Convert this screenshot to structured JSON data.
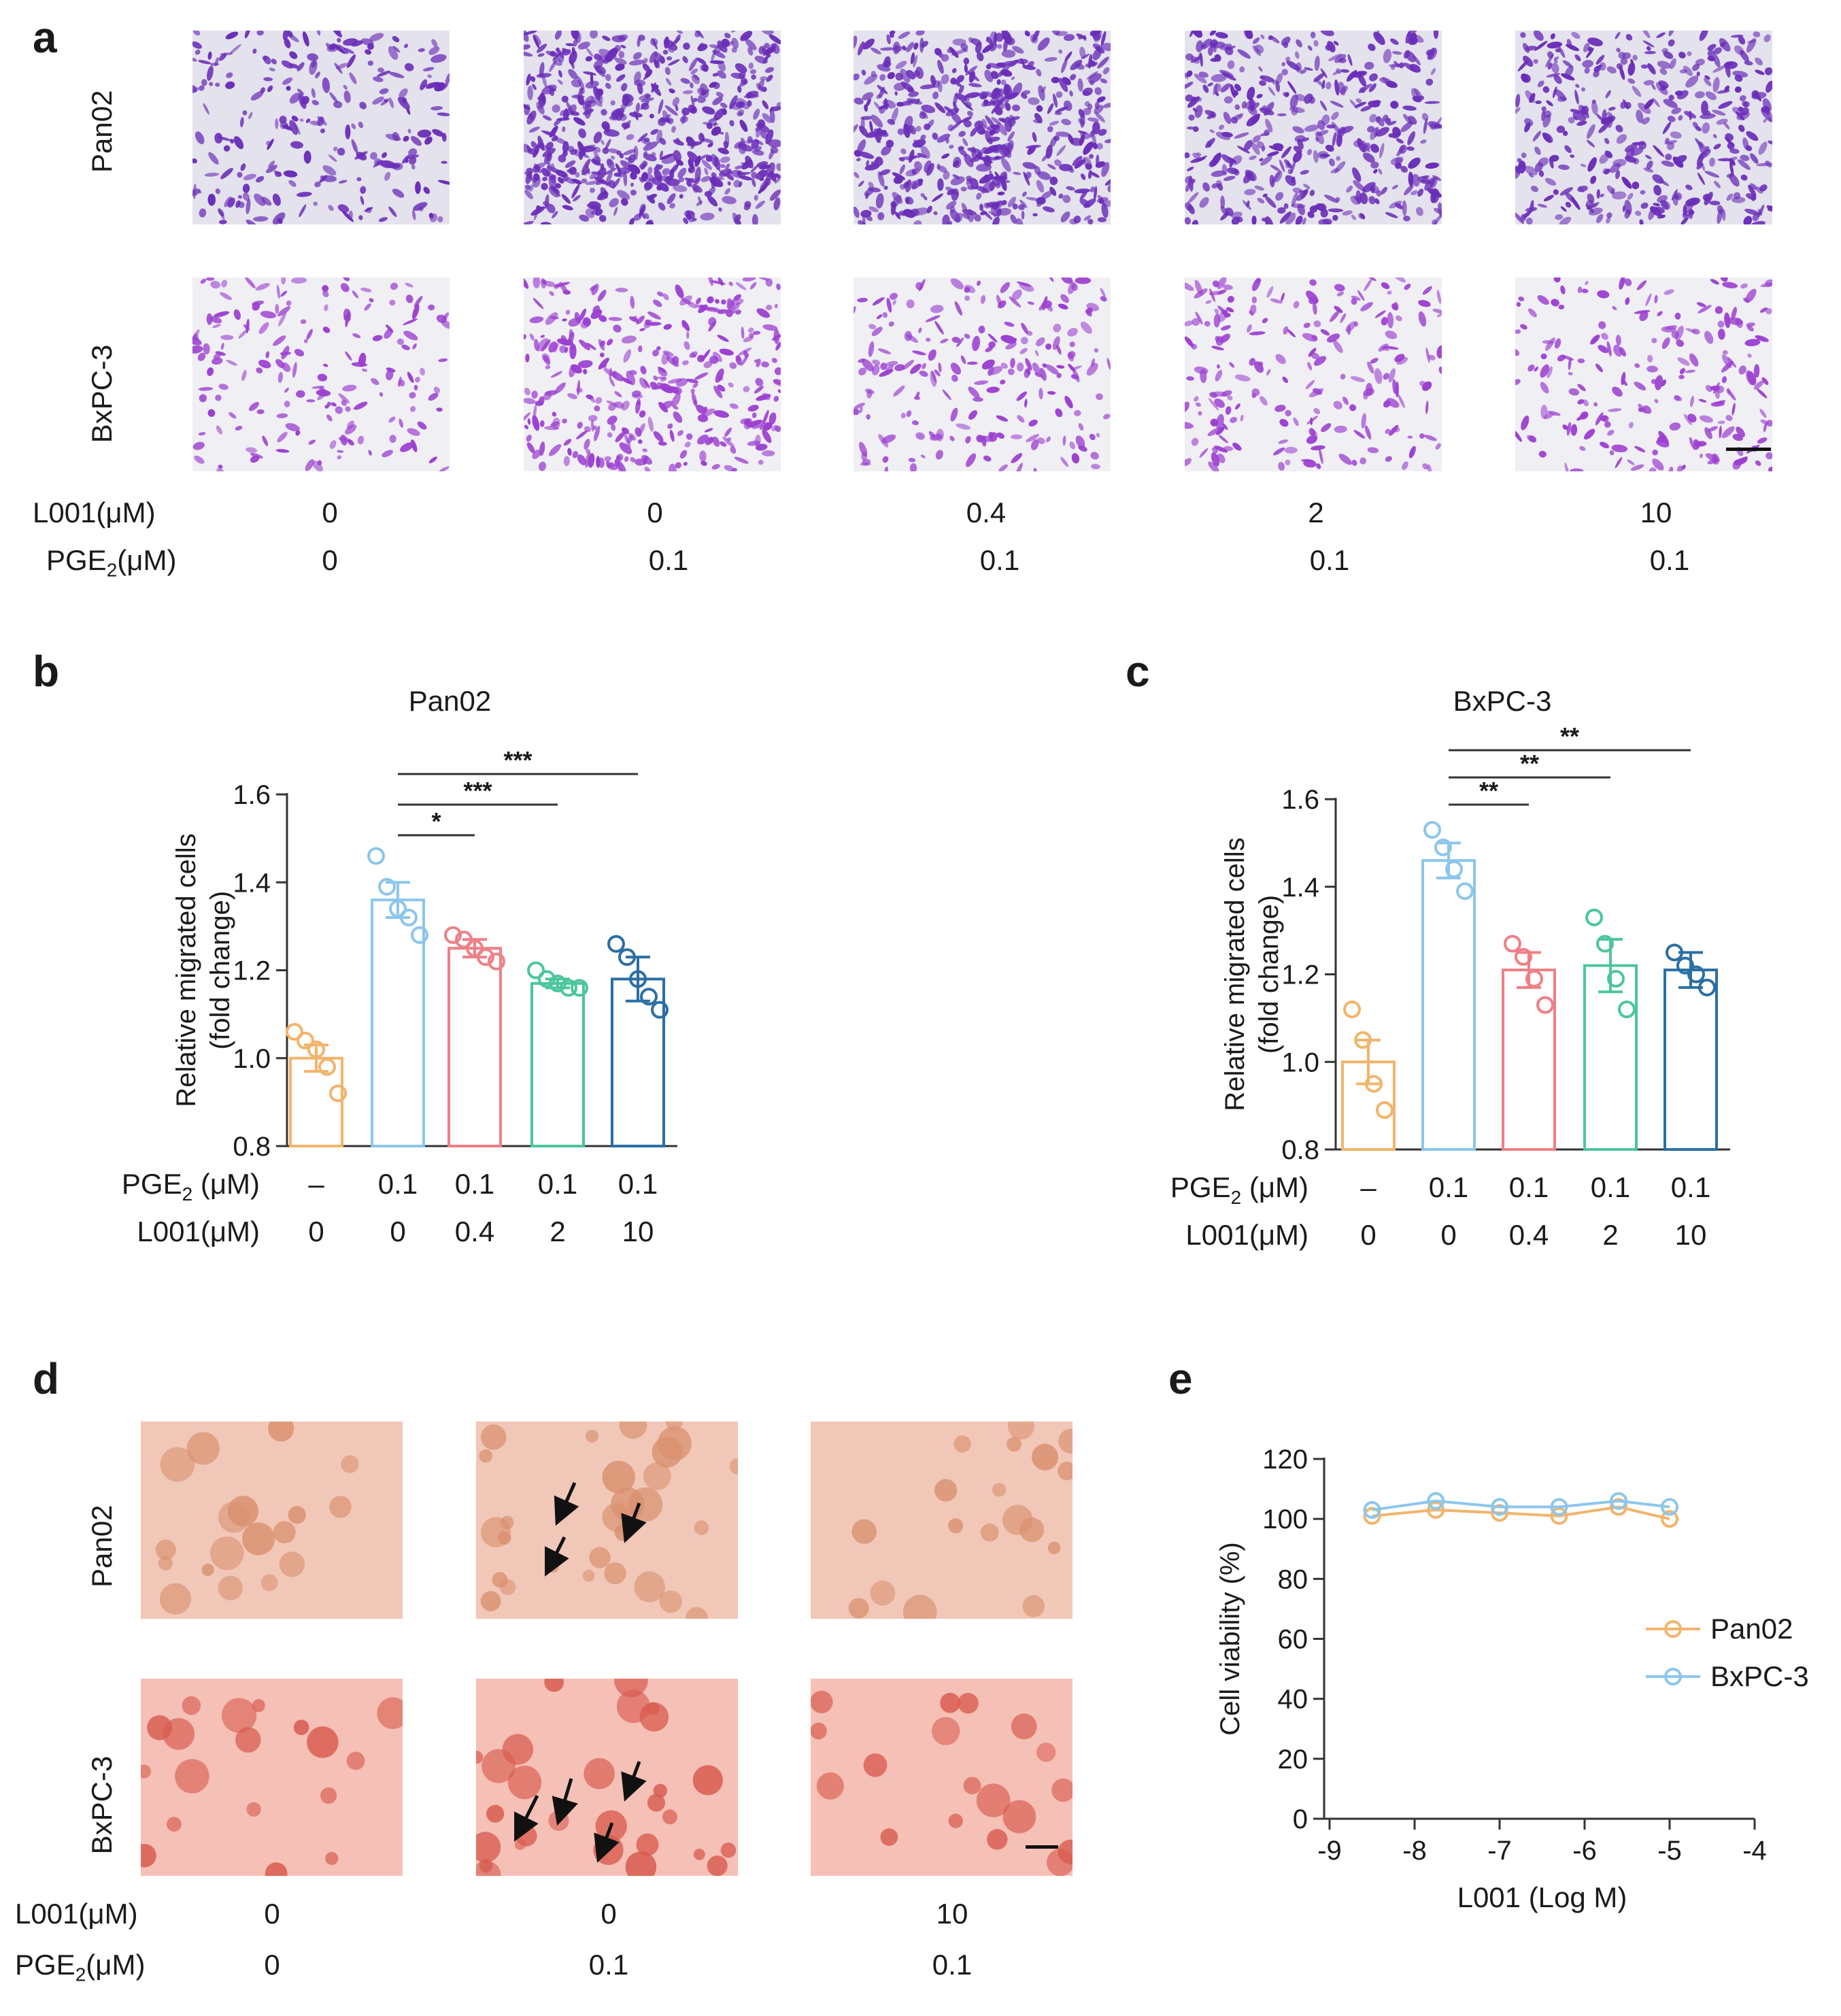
{
  "panels": {
    "a": {
      "letter": "a",
      "rows": [
        "Pan02",
        "BxPC-3"
      ],
      "cond_labels": {
        "l001": "L001(μM)",
        "pge_main": "PGE",
        "pge_sub": "2",
        "pge_unit": "(μM)"
      },
      "l001_values": [
        "0",
        "0",
        "0.4",
        "2",
        "10"
      ],
      "pge_values": [
        "0",
        "0.1",
        "0.1",
        "0.1",
        "0.1"
      ],
      "colors": {
        "pan02_bg": "#e4e2ec",
        "pan02_cell": "#6a2db8",
        "bx_bg": "#f0eff4",
        "bx_cell": "#9b3fd0"
      },
      "images": [
        {
          "row": 0,
          "density": 0.35
        },
        {
          "row": 0,
          "density": 0.85
        },
        {
          "row": 0,
          "density": 0.75
        },
        {
          "row": 0,
          "density": 0.6
        },
        {
          "row": 0,
          "density": 0.55
        },
        {
          "row": 1,
          "density": 0.25
        },
        {
          "row": 1,
          "density": 0.5
        },
        {
          "row": 1,
          "density": 0.3
        },
        {
          "row": 1,
          "density": 0.3
        },
        {
          "row": 1,
          "density": 0.3
        }
      ]
    },
    "b": {
      "letter": "b"
    },
    "c": {
      "letter": "c"
    },
    "d": {
      "letter": "d",
      "rows": [
        "Pan02",
        "BxPC-3"
      ],
      "cond_labels": {
        "l001": "L001(μM)",
        "pge_main": "PGE",
        "pge_sub": "2",
        "pge_unit": "(μM)"
      },
      "l001_values": [
        "0",
        "0",
        "10"
      ],
      "pge_values": [
        "0",
        "0.1",
        "0.1"
      ],
      "colors": {
        "pan02_bg": "#f1c7b8",
        "pan02_cell": "#d9906e",
        "bx_bg": "#f5c0b6",
        "bx_cell": "#d85a4e"
      }
    },
    "e": {
      "letter": "e"
    }
  },
  "chart_data": [
    {
      "id": "b",
      "type": "bar",
      "title": "Pan02",
      "ylabel": "Relative migrated cells",
      "ylabel2": "(fold change)",
      "ylim": [
        0.8,
        1.6
      ],
      "yticks": [
        "0.8",
        "1.0",
        "1.2",
        "1.4",
        "1.6"
      ],
      "row1_label": "PGE",
      "row1_sub": "2",
      "row1_unit": " (μM)",
      "row2_label": "L001(μM)",
      "categories_pge": [
        "–",
        "0.1",
        "0.1",
        "0.1",
        "0.1"
      ],
      "categories_l001": [
        "0",
        "0",
        "0.4",
        "2",
        "10"
      ],
      "colors": [
        "#f2b46b",
        "#8cc6ec",
        "#ef7f86",
        "#4cc69a",
        "#2a6fa4"
      ],
      "values": [
        1.0,
        1.36,
        1.25,
        1.17,
        1.18
      ],
      "errors": [
        0.03,
        0.04,
        0.02,
        0.01,
        0.05
      ],
      "points": [
        [
          1.06,
          1.04,
          1.02,
          0.98,
          0.92
        ],
        [
          1.46,
          1.39,
          1.34,
          1.32,
          1.28
        ],
        [
          1.28,
          1.27,
          1.25,
          1.23,
          1.22
        ],
        [
          1.2,
          1.18,
          1.17,
          1.16,
          1.16
        ],
        [
          1.26,
          1.23,
          1.18,
          1.14,
          1.11
        ]
      ],
      "sig": [
        {
          "from": 1,
          "to": 2,
          "label": "*"
        },
        {
          "from": 1,
          "to": 3,
          "label": "***"
        },
        {
          "from": 1,
          "to": 4,
          "label": "***"
        }
      ]
    },
    {
      "id": "c",
      "type": "bar",
      "title": "BxPC-3",
      "ylabel": "Relative migrated cells",
      "ylabel2": "(fold change)",
      "ylim": [
        0.8,
        1.6
      ],
      "yticks": [
        "0.8",
        "1.0",
        "1.2",
        "1.4",
        "1.6"
      ],
      "row1_label": "PGE",
      "row1_sub": "2",
      "row1_unit": " (μM)",
      "row2_label": "L001(μM)",
      "categories_pge": [
        "–",
        "0.1",
        "0.1",
        "0.1",
        "0.1"
      ],
      "categories_l001": [
        "0",
        "0",
        "0.4",
        "2",
        "10"
      ],
      "colors": [
        "#f2b46b",
        "#8cc6ec",
        "#ef7f86",
        "#4cc69a",
        "#2a6fa4"
      ],
      "values": [
        1.0,
        1.46,
        1.21,
        1.22,
        1.21
      ],
      "errors": [
        0.05,
        0.04,
        0.04,
        0.06,
        0.04
      ],
      "points": [
        [
          1.12,
          1.05,
          0.95,
          0.89
        ],
        [
          1.53,
          1.49,
          1.44,
          1.39
        ],
        [
          1.27,
          1.24,
          1.19,
          1.13
        ],
        [
          1.33,
          1.27,
          1.19,
          1.12
        ],
        [
          1.25,
          1.22,
          1.2,
          1.17
        ]
      ],
      "sig": [
        {
          "from": 1,
          "to": 2,
          "label": "**"
        },
        {
          "from": 1,
          "to": 3,
          "label": "**"
        },
        {
          "from": 1,
          "to": 4,
          "label": "**"
        }
      ]
    },
    {
      "id": "e",
      "type": "line",
      "xlabel": "L001 (Log M)",
      "ylabel": "Cell viability (%)",
      "xlim": [
        -9,
        -4
      ],
      "ylim": [
        0,
        120
      ],
      "xticks": [
        "-9",
        "-8",
        "-7",
        "-6",
        "-5",
        "-4"
      ],
      "yticks": [
        "0",
        "20",
        "40",
        "60",
        "80",
        "100",
        "120"
      ],
      "series": [
        {
          "name": "Pan02",
          "color": "#f2b46b",
          "x": [
            -8.5,
            -7.75,
            -7.0,
            -6.3,
            -5.6,
            -5.0
          ],
          "values": [
            101,
            103,
            102,
            101,
            104,
            100
          ]
        },
        {
          "name": "BxPC-3",
          "color": "#8cc6ec",
          "x": [
            -8.5,
            -7.75,
            -7.0,
            -6.3,
            -5.6,
            -5.0
          ],
          "values": [
            103,
            106,
            104,
            104,
            106,
            104
          ]
        }
      ]
    }
  ]
}
